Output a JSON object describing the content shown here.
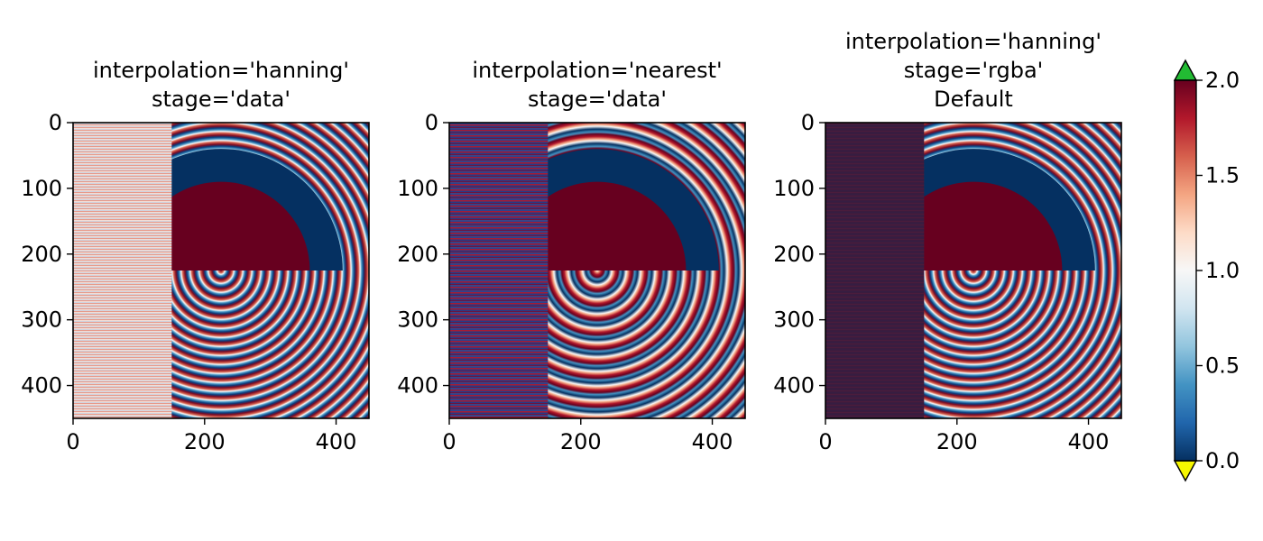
{
  "colors": {
    "colormap": "RdBu_r",
    "over": "#22bb33",
    "under": "#f7f700",
    "axes": "#000000"
  },
  "chart_data": [
    {
      "type": "heatmap",
      "title_lines": [
        "interpolation='hanning'",
        "stage='data'"
      ],
      "interpolation": "hanning",
      "stage": "data",
      "xlim": [
        0,
        450
      ],
      "ylim": [
        450,
        0
      ],
      "x_ticks": [
        0,
        200,
        400
      ],
      "y_ticks": [
        0,
        100,
        200,
        300,
        400
      ],
      "x_tick_labels": [
        "0",
        "200",
        "400"
      ],
      "y_tick_labels": [
        "0",
        "100",
        "200",
        "300",
        "400"
      ],
      "left_band": "washed-out fine stripes",
      "rings": "smooth concentric rings"
    },
    {
      "type": "heatmap",
      "title_lines": [
        "interpolation='nearest'",
        "stage='data'"
      ],
      "interpolation": "nearest",
      "stage": "data",
      "xlim": [
        0,
        450
      ],
      "ylim": [
        450,
        0
      ],
      "x_ticks": [
        0,
        200,
        400
      ],
      "y_ticks": [
        0,
        100,
        200,
        300,
        400
      ],
      "x_tick_labels": [
        "0",
        "200",
        "400"
      ],
      "y_tick_labels": [
        "0",
        "100",
        "200",
        "300",
        "400"
      ],
      "left_band": "aliased blue-red stripes",
      "rings": "moire concentric rings"
    },
    {
      "type": "heatmap",
      "title_lines": [
        "interpolation='hanning'",
        "stage='rgba'",
        "Default"
      ],
      "interpolation": "hanning",
      "stage": "rgba",
      "xlim": [
        0,
        450
      ],
      "ylim": [
        450,
        0
      ],
      "x_ticks": [
        0,
        200,
        400
      ],
      "y_ticks": [
        0,
        100,
        200,
        300,
        400
      ],
      "x_tick_labels": [
        "0",
        "200",
        "400"
      ],
      "y_tick_labels": [
        "0",
        "100",
        "200",
        "300",
        "400"
      ],
      "left_band": "dark purple blend",
      "rings": "smooth concentric rings"
    }
  ],
  "colorbar": {
    "range": [
      0.0,
      2.0
    ],
    "ticks": [
      0.0,
      0.5,
      1.0,
      1.5,
      2.0
    ],
    "tick_labels": [
      "0.0",
      "0.5",
      "1.0",
      "1.5",
      "2.0"
    ],
    "extend": "both"
  }
}
